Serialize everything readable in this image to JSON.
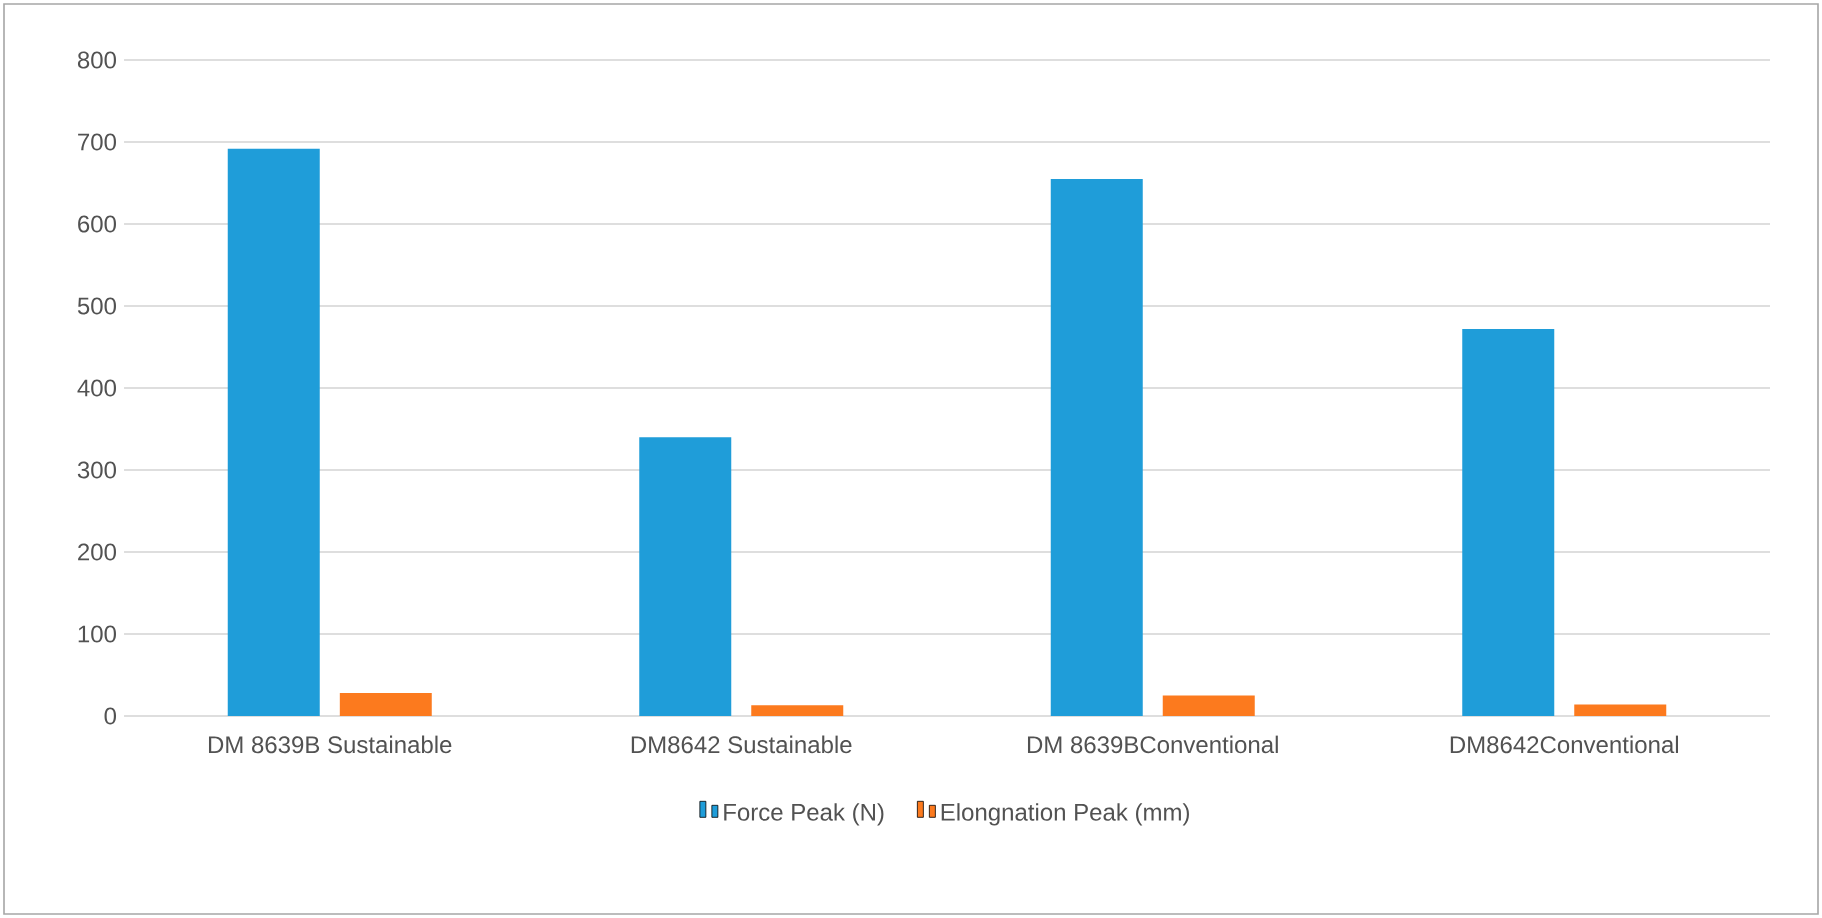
{
  "chart_data": {
    "type": "bar",
    "categories": [
      "DM 8639B Sustainable",
      "DM8642 Sustainable",
      "DM 8639BConventional",
      "DM8642Conventional"
    ],
    "series": [
      {
        "name": "Force Peak (N)",
        "color": "#1f9dd9",
        "values": [
          692,
          340,
          655,
          472
        ]
      },
      {
        "name": "Elongnation Peak (mm)",
        "color": "#fc7a1e",
        "values": [
          28,
          13,
          25,
          14
        ]
      }
    ],
    "ylim": [
      0,
      800
    ],
    "yticks": [
      0,
      100,
      200,
      300,
      400,
      500,
      600,
      700,
      800
    ],
    "grid": "y",
    "legend": "bottom"
  }
}
